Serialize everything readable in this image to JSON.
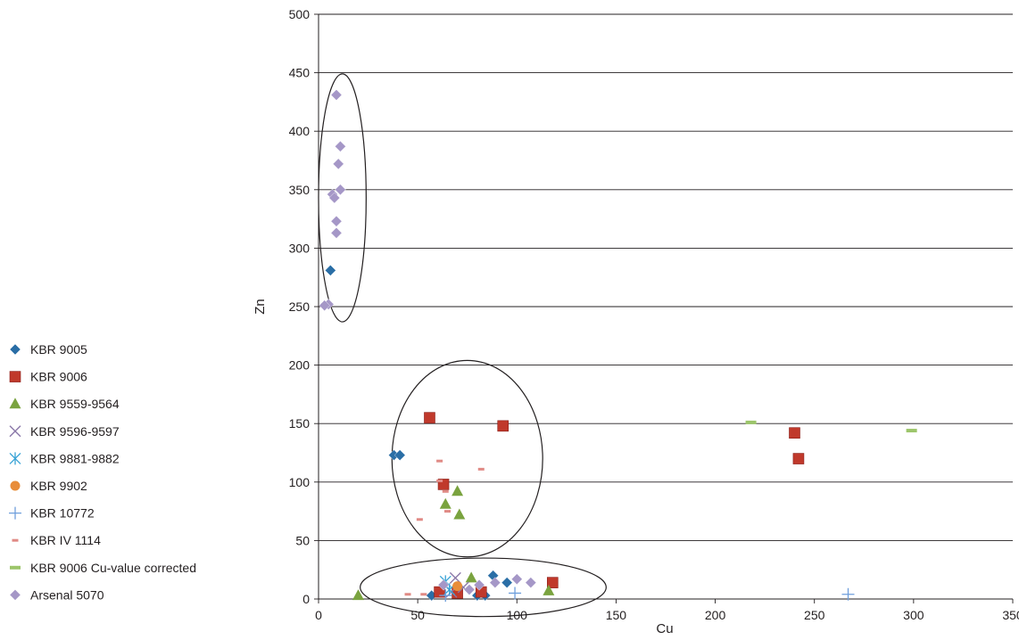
{
  "chart_data": {
    "type": "scatter",
    "title": "",
    "xlabel": "Cu",
    "ylabel": "Zn",
    "xlim": [
      0,
      350
    ],
    "ylim": [
      0,
      500
    ],
    "x_ticks": [
      "0",
      "50",
      "100",
      "150",
      "200",
      "250",
      "300",
      "350"
    ],
    "y_ticks": [
      "0",
      "50",
      "100",
      "150",
      "200",
      "250",
      "300",
      "350",
      "400",
      "450",
      "500"
    ],
    "grid": "horizontal major gridlines",
    "legend_position": "left",
    "series": [
      {
        "name": "KBR 9005",
        "marker": "diamond",
        "color": "#2a6ea6",
        "points": [
          [
            6,
            281
          ],
          [
            38,
            123
          ],
          [
            41,
            123
          ],
          [
            57,
            3
          ],
          [
            80,
            3
          ],
          [
            84,
            3
          ],
          [
            88,
            20
          ],
          [
            95,
            14
          ]
        ]
      },
      {
        "name": "KBR 9006",
        "marker": "square",
        "color": "#c0392b",
        "points": [
          [
            56,
            155
          ],
          [
            63,
            98
          ],
          [
            93,
            148
          ],
          [
            240,
            142
          ],
          [
            242,
            120
          ],
          [
            61,
            6
          ],
          [
            70,
            5
          ],
          [
            82,
            6
          ],
          [
            118,
            14
          ]
        ]
      },
      {
        "name": "KBR 9559-9564",
        "marker": "triangle",
        "color": "#7aa33f",
        "points": [
          [
            70,
            92
          ],
          [
            64,
            81
          ],
          [
            71,
            72
          ],
          [
            20,
            3
          ],
          [
            77,
            18
          ],
          [
            116,
            7
          ]
        ]
      },
      {
        "name": "KBR 9596-9597",
        "marker": "x",
        "color": "#8a78a8",
        "points": [
          [
            69,
            18
          ],
          [
            73,
            10
          ],
          [
            67,
            6
          ]
        ]
      },
      {
        "name": "KBR 9881-9882",
        "marker": "asterisk",
        "color": "#39a3d6",
        "points": [
          [
            64,
            15
          ],
          [
            66,
            8
          ]
        ]
      },
      {
        "name": "KBR 9902",
        "marker": "circle",
        "color": "#e88d3a",
        "points": [
          [
            70,
            11
          ]
        ]
      },
      {
        "name": "KBR 10772",
        "marker": "plus",
        "color": "#6f9fdc",
        "points": [
          [
            99,
            5
          ],
          [
            267,
            4
          ],
          [
            64,
            3
          ]
        ]
      },
      {
        "name": "KBR IV 1114",
        "marker": "dash",
        "color": "#e08a85",
        "points": [
          [
            61,
            101
          ],
          [
            61,
            118
          ],
          [
            64,
            92
          ],
          [
            65,
            75
          ],
          [
            51,
            68
          ],
          [
            82,
            111
          ],
          [
            45,
            4
          ],
          [
            53,
            4
          ]
        ]
      },
      {
        "name": "KBR 9006 Cu-value corrected",
        "marker": "bar",
        "color": "#9cc56a",
        "points": [
          [
            218,
            151
          ],
          [
            299,
            144
          ]
        ]
      },
      {
        "name": "Arsenal 5070",
        "marker": "diamond",
        "color": "#a597c7",
        "points": [
          [
            9,
            431
          ],
          [
            11,
            387
          ],
          [
            10,
            372
          ],
          [
            11,
            350
          ],
          [
            7,
            346
          ],
          [
            8,
            343
          ],
          [
            9,
            323
          ],
          [
            9,
            313
          ],
          [
            5,
            252
          ],
          [
            3,
            251
          ],
          [
            63,
            12
          ],
          [
            76,
            8
          ],
          [
            81,
            12
          ],
          [
            89,
            14
          ],
          [
            100,
            17
          ],
          [
            107,
            14
          ]
        ]
      }
    ],
    "annotations": [
      {
        "shape": "ellipse",
        "cx": 12,
        "cy": 343,
        "rx": 12,
        "ry": 106
      },
      {
        "shape": "ellipse",
        "cx": 75,
        "cy": 120,
        "rx": 38,
        "ry": 84
      },
      {
        "shape": "ellipse",
        "cx": 83,
        "cy": 10,
        "rx": 62,
        "ry": 25
      }
    ]
  }
}
